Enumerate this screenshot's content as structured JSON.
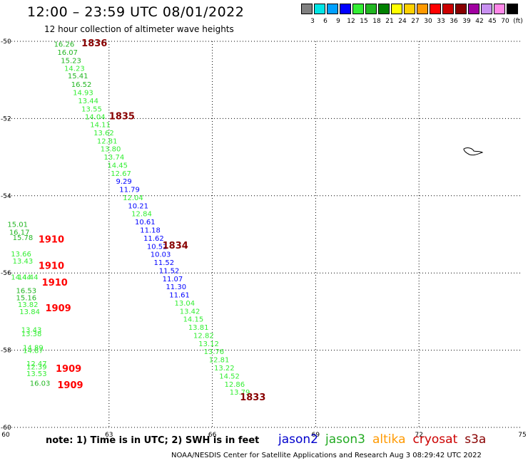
{
  "header": {
    "title": "12:00 – 23:59 UTC 08/01/2022",
    "subtitle": "12 hour collection of altimeter wave heights"
  },
  "color_legend": {
    "colors": [
      "#808080",
      "#00e5e5",
      "#00a0ff",
      "#0000ff",
      "#33ee33",
      "#22b622",
      "#008000",
      "#ffff00",
      "#ffd000",
      "#ff9900",
      "#ff0000",
      "#cc0000",
      "#880000",
      "#a000a0",
      "#c890f0",
      "#ff88e8",
      "#000000"
    ],
    "labels": [
      "3",
      "6",
      "9",
      "12",
      "15",
      "18",
      "21",
      "24",
      "27",
      "30",
      "33",
      "36",
      "39",
      "42",
      "45",
      "70",
      "(ft)"
    ]
  },
  "chart_data": {
    "type": "scatter",
    "title": "12:00 – 23:59 UTC 08/01/2022",
    "xlabel": "",
    "ylabel": "",
    "xlim": [
      60,
      75
    ],
    "ylim": [
      -60,
      -50
    ],
    "x_ticks": [
      "60",
      "63",
      "66",
      "69",
      "72",
      "75"
    ],
    "y_ticks": [
      "-50",
      "-52",
      "-54",
      "-56",
      "-58",
      "-60"
    ],
    "grid": true,
    "points": [
      {
        "lon": 61.4,
        "lat": -50.06,
        "v": "16.26",
        "c": "#22b622"
      },
      {
        "lon": 61.5,
        "lat": -50.28,
        "v": "16.07",
        "c": "#22b622"
      },
      {
        "lon": 61.6,
        "lat": -50.49,
        "v": "15.23",
        "c": "#22b622"
      },
      {
        "lon": 61.7,
        "lat": -50.69,
        "v": "14.23",
        "c": "#33ee33"
      },
      {
        "lon": 61.8,
        "lat": -50.89,
        "v": "15.41",
        "c": "#22b622"
      },
      {
        "lon": 61.9,
        "lat": -51.11,
        "v": "16.52",
        "c": "#22b622"
      },
      {
        "lon": 61.95,
        "lat": -51.32,
        "v": "14.93",
        "c": "#33ee33"
      },
      {
        "lon": 62.1,
        "lat": -51.53,
        "v": "13.44",
        "c": "#33ee33"
      },
      {
        "lon": 62.2,
        "lat": -51.74,
        "v": "13.55",
        "c": "#33ee33"
      },
      {
        "lon": 62.3,
        "lat": -51.95,
        "v": "14.04",
        "c": "#33ee33"
      },
      {
        "lon": 62.45,
        "lat": -52.15,
        "v": "14.11",
        "c": "#33ee33"
      },
      {
        "lon": 62.55,
        "lat": -52.36,
        "v": "13.62",
        "c": "#33ee33"
      },
      {
        "lon": 62.65,
        "lat": -52.57,
        "v": "12.81",
        "c": "#33ee33"
      },
      {
        "lon": 62.75,
        "lat": -52.78,
        "v": "13.80",
        "c": "#33ee33"
      },
      {
        "lon": 62.85,
        "lat": -52.99,
        "v": "13.74",
        "c": "#33ee33"
      },
      {
        "lon": 62.95,
        "lat": -53.2,
        "v": "14.45",
        "c": "#33ee33"
      },
      {
        "lon": 63.05,
        "lat": -53.41,
        "v": "12.67",
        "c": "#33ee33"
      },
      {
        "lon": 63.2,
        "lat": -53.62,
        "v": "9.29",
        "c": "#0000ff"
      },
      {
        "lon": 63.3,
        "lat": -53.83,
        "v": "11.79",
        "c": "#0000ff"
      },
      {
        "lon": 63.4,
        "lat": -54.04,
        "v": "12.04",
        "c": "#33ee33"
      },
      {
        "lon": 63.55,
        "lat": -54.25,
        "v": "10.21",
        "c": "#0000ff"
      },
      {
        "lon": 63.65,
        "lat": -54.46,
        "v": "12.84",
        "c": "#33ee33"
      },
      {
        "lon": 63.75,
        "lat": -54.67,
        "v": "10.61",
        "c": "#0000ff"
      },
      {
        "lon": 63.9,
        "lat": -54.88,
        "v": "11.18",
        "c": "#0000ff"
      },
      {
        "lon": 64.0,
        "lat": -55.09,
        "v": "11.62",
        "c": "#0000ff"
      },
      {
        "lon": 64.1,
        "lat": -55.3,
        "v": "10.52",
        "c": "#0000ff"
      },
      {
        "lon": 64.2,
        "lat": -55.51,
        "v": "10.03",
        "c": "#0000ff"
      },
      {
        "lon": 64.3,
        "lat": -55.72,
        "v": "11.52",
        "c": "#0000ff"
      },
      {
        "lon": 64.45,
        "lat": -55.93,
        "v": "11.52",
        "c": "#0000ff"
      },
      {
        "lon": 64.55,
        "lat": -56.14,
        "v": "11.07",
        "c": "#0000ff"
      },
      {
        "lon": 64.65,
        "lat": -56.35,
        "v": "11.30",
        "c": "#0000ff"
      },
      {
        "lon": 64.75,
        "lat": -56.56,
        "v": "11.61",
        "c": "#0000ff"
      },
      {
        "lon": 64.9,
        "lat": -56.77,
        "v": "13.04",
        "c": "#33ee33"
      },
      {
        "lon": 65.05,
        "lat": -56.98,
        "v": "13.42",
        "c": "#33ee33"
      },
      {
        "lon": 65.15,
        "lat": -57.19,
        "v": "14.15",
        "c": "#33ee33"
      },
      {
        "lon": 65.3,
        "lat": -57.4,
        "v": "13.81",
        "c": "#33ee33"
      },
      {
        "lon": 65.45,
        "lat": -57.61,
        "v": "12.82",
        "c": "#33ee33"
      },
      {
        "lon": 65.6,
        "lat": -57.82,
        "v": "13.12",
        "c": "#33ee33"
      },
      {
        "lon": 65.75,
        "lat": -58.03,
        "v": "13.76",
        "c": "#33ee33"
      },
      {
        "lon": 65.9,
        "lat": -58.24,
        "v": "12.81",
        "c": "#33ee33"
      },
      {
        "lon": 66.05,
        "lat": -58.45,
        "v": "13.22",
        "c": "#33ee33"
      },
      {
        "lon": 66.2,
        "lat": -58.66,
        "v": "14.52",
        "c": "#33ee33"
      },
      {
        "lon": 66.35,
        "lat": -58.87,
        "v": "12.86",
        "c": "#33ee33"
      },
      {
        "lon": 66.5,
        "lat": -59.08,
        "v": "13.79",
        "c": "#33ee33"
      },
      {
        "lon": 60.05,
        "lat": -54.73,
        "v": "15.01",
        "c": "#22b622"
      },
      {
        "lon": 60.1,
        "lat": -54.94,
        "v": "16.17",
        "c": "#22b622"
      },
      {
        "lon": 60.2,
        "lat": -55.07,
        "v": "15.78",
        "c": "#22b622"
      },
      {
        "lon": 60.15,
        "lat": -55.5,
        "v": "13.66",
        "c": "#33ee33"
      },
      {
        "lon": 60.2,
        "lat": -55.68,
        "v": "13.43",
        "c": "#33ee33"
      },
      {
        "lon": 60.15,
        "lat": -56.1,
        "v": "14.44",
        "c": "#33ee33"
      },
      {
        "lon": 60.35,
        "lat": -56.1,
        "v": "14.44",
        "c": "#33ee33"
      },
      {
        "lon": 60.3,
        "lat": -56.45,
        "v": "16.53",
        "c": "#22b622"
      },
      {
        "lon": 60.3,
        "lat": -56.63,
        "v": "15.16",
        "c": "#22b622"
      },
      {
        "lon": 60.35,
        "lat": -56.81,
        "v": "13.82",
        "c": "#33ee33"
      },
      {
        "lon": 60.4,
        "lat": -56.99,
        "v": "13.84",
        "c": "#33ee33"
      },
      {
        "lon": 60.45,
        "lat": -57.46,
        "v": "13.43",
        "c": "#33ee33"
      },
      {
        "lon": 60.45,
        "lat": -57.56,
        "v": "13.38",
        "c": "#33ee33"
      },
      {
        "lon": 60.5,
        "lat": -57.92,
        "v": "14.89",
        "c": "#33ee33"
      },
      {
        "lon": 60.5,
        "lat": -58.0,
        "v": "14.87",
        "c": "#33ee33"
      },
      {
        "lon": 60.6,
        "lat": -58.34,
        "v": "12.47",
        "c": "#33ee33"
      },
      {
        "lon": 60.6,
        "lat": -58.42,
        "v": "12.39",
        "c": "#33ee33"
      },
      {
        "lon": 60.6,
        "lat": -58.6,
        "v": "13.53",
        "c": "#33ee33"
      },
      {
        "lon": 60.7,
        "lat": -58.85,
        "v": "16.03",
        "c": "#22b622"
      }
    ],
    "time_labels": [
      {
        "lon": 62.2,
        "lat": -50.04,
        "v": "1836",
        "c": "#880000"
      },
      {
        "lon": 63.0,
        "lat": -51.93,
        "v": "1835",
        "c": "#880000"
      },
      {
        "lon": 64.55,
        "lat": -55.28,
        "v": "1834",
        "c": "#880000"
      },
      {
        "lon": 66.8,
        "lat": -59.21,
        "v": "1833",
        "c": "#880000"
      },
      {
        "lon": 60.95,
        "lat": -55.12,
        "v": "1910",
        "c": "#ff0000"
      },
      {
        "lon": 60.95,
        "lat": -55.8,
        "v": "1910",
        "c": "#ff0000"
      },
      {
        "lon": 61.05,
        "lat": -56.24,
        "v": "1910",
        "c": "#ff0000"
      },
      {
        "lon": 61.15,
        "lat": -56.9,
        "v": "1909",
        "c": "#ff0000"
      },
      {
        "lon": 61.45,
        "lat": -58.47,
        "v": "1909",
        "c": "#ff0000"
      },
      {
        "lon": 61.5,
        "lat": -58.89,
        "v": "1909",
        "c": "#ff0000"
      }
    ]
  },
  "footer": {
    "note": "note: 1) Time is in UTC; 2) SWH is in feet",
    "satellites": [
      {
        "name": "jason2",
        "color": "#0000cc"
      },
      {
        "name": "jason3",
        "color": "#22aa22"
      },
      {
        "name": "altika",
        "color": "#ff9900"
      },
      {
        "name": "cryosat",
        "color": "#cc0000"
      },
      {
        "name": "s3a",
        "color": "#880000"
      }
    ],
    "credit": "NOAA/NESDIS Center for Satellite Applications and Research    Aug  3 08:29:42 UTC 2022"
  }
}
